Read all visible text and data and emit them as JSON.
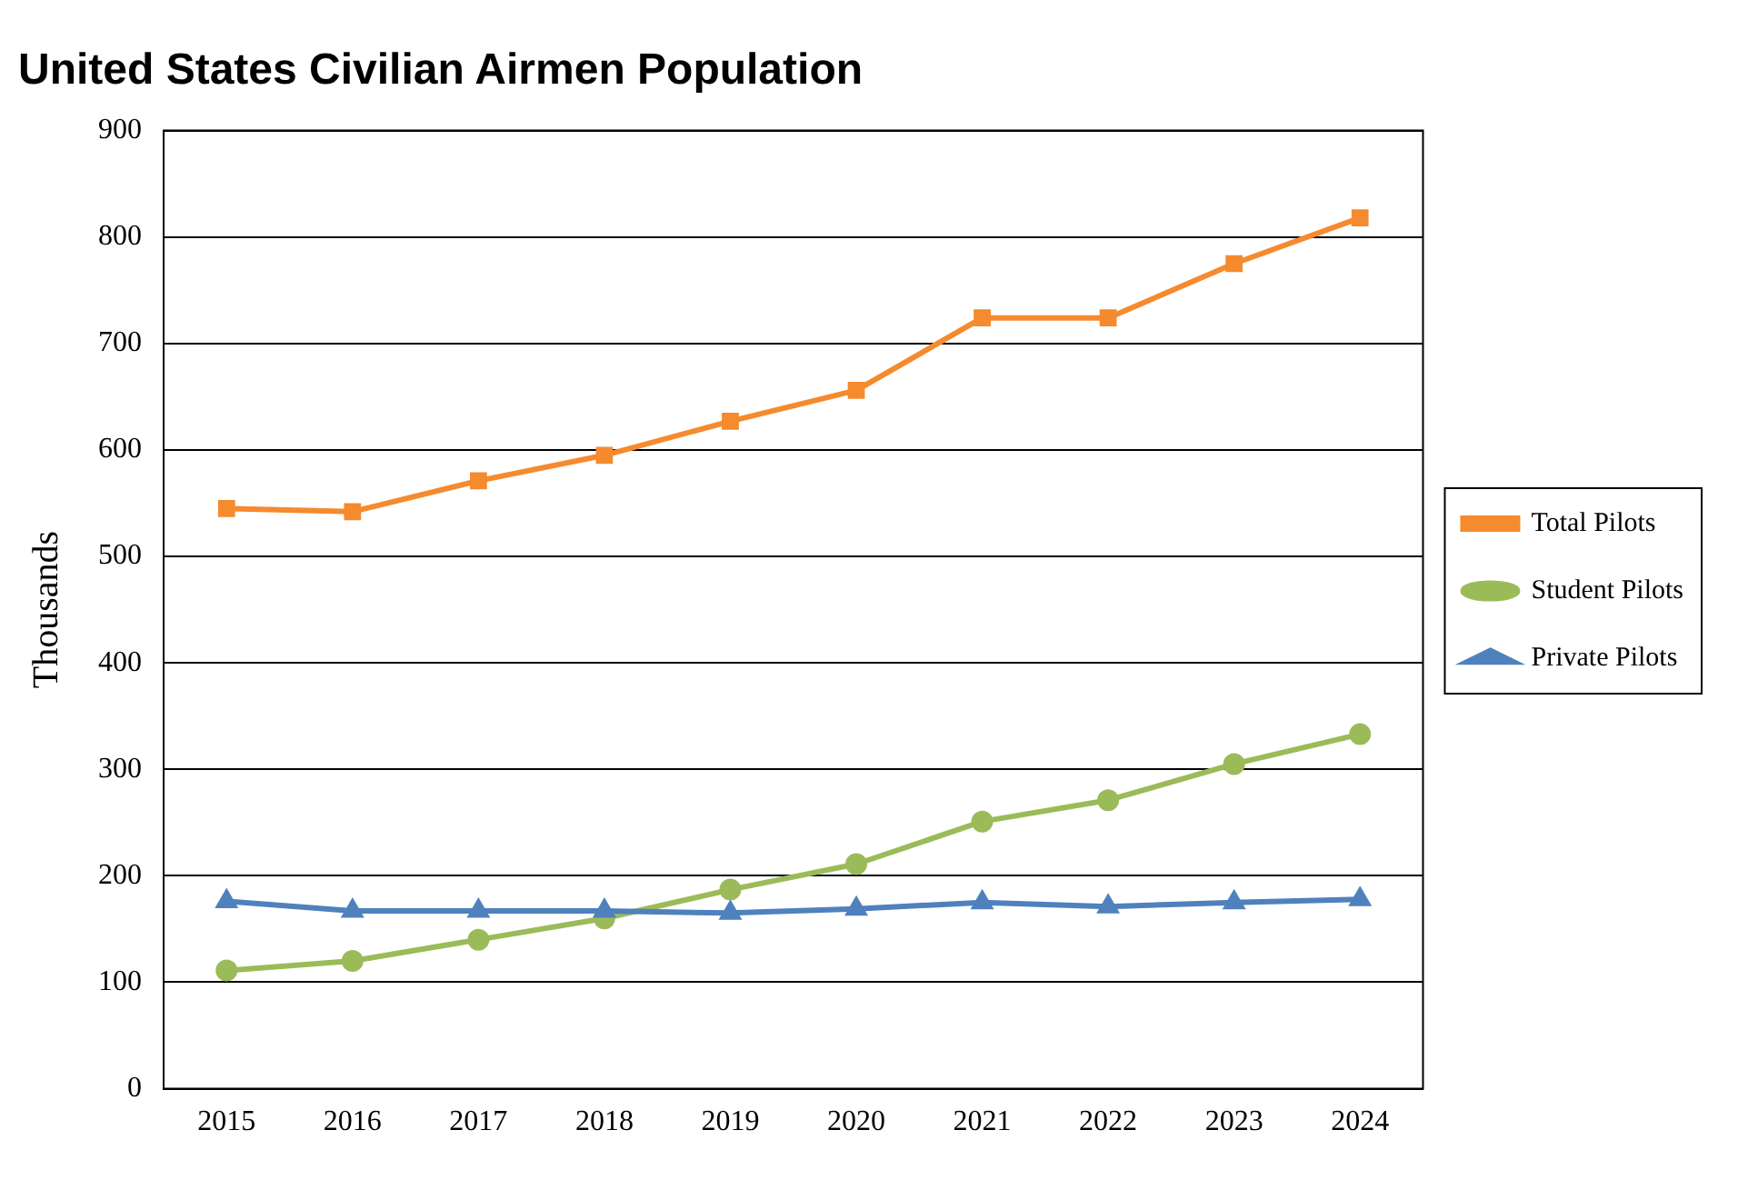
{
  "chart_data": {
    "type": "line",
    "title": "United States Civilian Airmen Population",
    "ylabel": "Thousands",
    "categories": [
      "2015",
      "2016",
      "2017",
      "2018",
      "2019",
      "2020",
      "2021",
      "2022",
      "2023",
      "2024"
    ],
    "series": [
      {
        "name": "Total Pilots",
        "color": "#f58a2e",
        "marker": "square",
        "values": [
          545,
          542,
          571,
          595,
          627,
          656,
          724,
          724,
          775,
          818
        ]
      },
      {
        "name": "Student Pilots",
        "color": "#9bbb59",
        "marker": "circle",
        "values": [
          111,
          120,
          140,
          160,
          187,
          211,
          251,
          271,
          305,
          333
        ]
      },
      {
        "name": "Private Pilots",
        "color": "#4f81bd",
        "marker": "triangle",
        "values": [
          176,
          167,
          167,
          167,
          165,
          169,
          175,
          171,
          175,
          178
        ]
      }
    ],
    "ylim": [
      0,
      900
    ],
    "yticks": [
      0,
      100,
      200,
      300,
      400,
      500,
      600,
      700,
      800,
      900
    ],
    "grid": "y",
    "legend": "right",
    "line_style": "solid"
  }
}
